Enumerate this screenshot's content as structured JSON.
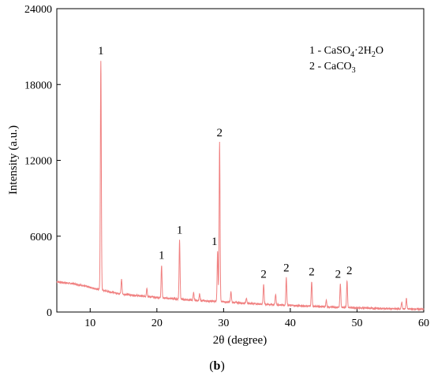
{
  "chart_data": {
    "type": "line",
    "xlabel": "2θ (degree)",
    "ylabel": "Intensity (a.u.)",
    "xlim": [
      5,
      60
    ],
    "ylim": [
      0,
      24000
    ],
    "x_ticks": [
      10,
      20,
      30,
      40,
      50,
      60
    ],
    "y_ticks": [
      0,
      6000,
      12000,
      18000,
      24000
    ],
    "grid": false,
    "line_color": "#f08080",
    "legend": {
      "placement": "top-right",
      "entries": [
        {
          "prefix": "1 - CaSO",
          "sub1": "4",
          "mid": "·2H",
          "sub2": "2",
          "suffix": "O"
        },
        {
          "prefix": "2 - CaCO",
          "sub1": "3",
          "mid": "",
          "sub2": "",
          "suffix": ""
        }
      ]
    },
    "baseline": [
      [
        5,
        2400
      ],
      [
        8,
        2200
      ],
      [
        10,
        1950
      ],
      [
        12,
        1700
      ],
      [
        15,
        1400
      ],
      [
        20,
        1150
      ],
      [
        25,
        950
      ],
      [
        30,
        800
      ],
      [
        35,
        650
      ],
      [
        40,
        520
      ],
      [
        45,
        420
      ],
      [
        50,
        330
      ],
      [
        55,
        260
      ],
      [
        60,
        220
      ]
    ],
    "peaks": [
      {
        "x": 11.6,
        "y": 19900,
        "label": "1"
      },
      {
        "x": 14.7,
        "y": 2600,
        "label": ""
      },
      {
        "x": 18.5,
        "y": 1900,
        "label": ""
      },
      {
        "x": 20.7,
        "y": 3700,
        "label": "1"
      },
      {
        "x": 23.4,
        "y": 5700,
        "label": "1"
      },
      {
        "x": 25.5,
        "y": 1500,
        "label": ""
      },
      {
        "x": 26.4,
        "y": 1400,
        "label": ""
      },
      {
        "x": 29.1,
        "y": 4800,
        "label": "1"
      },
      {
        "x": 29.4,
        "y": 13400,
        "label": "2"
      },
      {
        "x": 31.1,
        "y": 1600,
        "label": ""
      },
      {
        "x": 33.4,
        "y": 1100,
        "label": ""
      },
      {
        "x": 36.0,
        "y": 2200,
        "label": "2"
      },
      {
        "x": 37.8,
        "y": 1400,
        "label": ""
      },
      {
        "x": 39.4,
        "y": 2700,
        "label": "2"
      },
      {
        "x": 43.2,
        "y": 2400,
        "label": "2"
      },
      {
        "x": 45.4,
        "y": 900,
        "label": ""
      },
      {
        "x": 47.5,
        "y": 2200,
        "label": "2"
      },
      {
        "x": 48.5,
        "y": 2500,
        "label": "2"
      },
      {
        "x": 56.7,
        "y": 800,
        "label": ""
      },
      {
        "x": 57.4,
        "y": 1100,
        "label": ""
      }
    ]
  },
  "caption": {
    "open": "(",
    "letter": "b",
    "close": ")"
  }
}
